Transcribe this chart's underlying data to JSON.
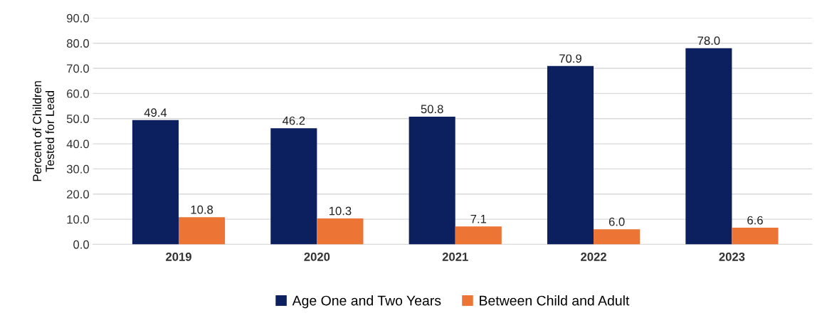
{
  "chart_data": {
    "type": "bar",
    "ylabel": "Percent of Children\nTested for Lead",
    "categories": [
      "2019",
      "2020",
      "2021",
      "2022",
      "2023"
    ],
    "series": [
      {
        "name": "Age One and Two Years",
        "color": "#0c1f5e",
        "values": [
          49.4,
          46.2,
          50.8,
          70.9,
          78.0
        ],
        "value_labels": [
          "49.4",
          "46.2",
          "50.8",
          "70.9",
          "78.0"
        ]
      },
      {
        "name": "Between Child and Adult",
        "color": "#ec7434",
        "values": [
          10.8,
          10.3,
          7.1,
          6.0,
          6.6
        ],
        "value_labels": [
          "10.8",
          "10.3",
          "7.1",
          "6.0",
          "6.6"
        ]
      }
    ],
    "ylim": [
      0,
      90
    ],
    "yticks": [
      {
        "value": 0,
        "label": "0.0"
      },
      {
        "value": 10,
        "label": "10.0"
      },
      {
        "value": 20,
        "label": "20.0"
      },
      {
        "value": 30,
        "label": "30.0"
      },
      {
        "value": 40,
        "label": "40.0"
      },
      {
        "value": 50,
        "label": "50.0"
      },
      {
        "value": 60,
        "label": "60.0"
      },
      {
        "value": 70,
        "label": "70.0"
      },
      {
        "value": 80,
        "label": "80.0"
      },
      {
        "value": 90,
        "label": "90.0"
      }
    ],
    "grid": "y",
    "legend": "bottom"
  }
}
